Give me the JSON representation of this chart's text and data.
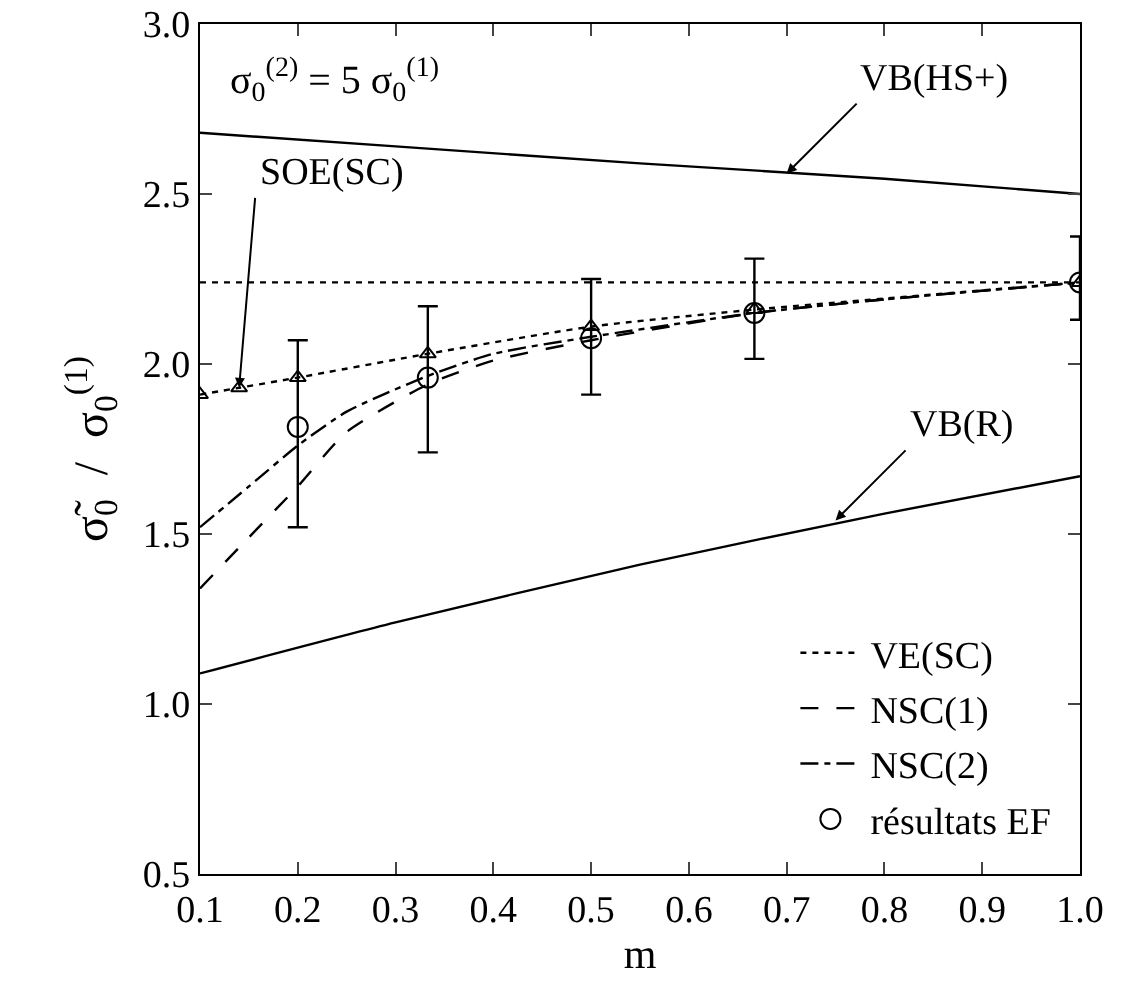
{
  "chart_data": {
    "type": "line",
    "xlabel": "m",
    "ylabel": "σ̃$_{0}$  /  σ$_{0}$$^{(1)}$",
    "xlim": [
      0.1,
      1.0
    ],
    "xticks": [
      {
        "value": 0.1,
        "label": "0.1"
      },
      {
        "value": 0.2,
        "label": "0.2"
      },
      {
        "value": 0.3,
        "label": "0.3"
      },
      {
        "value": 0.4,
        "label": "0.4"
      },
      {
        "value": 0.5,
        "label": "0.5"
      },
      {
        "value": 0.6,
        "label": "0.6"
      },
      {
        "value": 0.7,
        "label": "0.7"
      },
      {
        "value": 0.8,
        "label": "0.8"
      },
      {
        "value": 0.9,
        "label": "0.9"
      },
      {
        "value": 1.0,
        "label": "1.0"
      }
    ],
    "ylim": [
      0.5,
      3.0
    ],
    "yticks": [
      {
        "value": 0.5,
        "label": "0.5"
      },
      {
        "value": 1.0,
        "label": "1.0"
      },
      {
        "value": 1.5,
        "label": "1.5"
      },
      {
        "value": 2.0,
        "label": "2.0"
      },
      {
        "value": 2.5,
        "label": "2.5"
      },
      {
        "value": 3.0,
        "label": "3.0"
      }
    ],
    "grid": false,
    "legend": "bottom right",
    "series": [
      {
        "name": "VE(SC)",
        "color": "#000000",
        "line_style": "dotted",
        "x": [
          0.1,
          1.0
        ],
        "values": [
          2.24,
          2.24
        ]
      },
      {
        "name": "NSC(1)",
        "color": "#000000",
        "line_style": "dashed",
        "x": [
          0.1,
          0.15,
          0.2,
          0.25,
          0.333,
          0.4,
          0.5,
          0.667,
          0.8,
          1.0
        ],
        "values": [
          1.34,
          1.49,
          1.64,
          1.8,
          1.94,
          2.01,
          2.07,
          2.15,
          2.19,
          2.24
        ]
      },
      {
        "name": "NSC(2)",
        "color": "#000000",
        "line_style": "dashdot",
        "x": [
          0.1,
          0.15,
          0.2,
          0.25,
          0.333,
          0.4,
          0.5,
          0.667,
          0.8,
          1.0
        ],
        "values": [
          1.52,
          1.64,
          1.76,
          1.86,
          1.965,
          2.03,
          2.08,
          2.15,
          2.19,
          2.24
        ]
      },
      {
        "name": "résultats EF",
        "type": "scatter",
        "color": "#000000",
        "marker": "circle",
        "x": [
          0.2,
          0.333,
          0.5,
          0.667,
          1.0
        ],
        "values": [
          1.815,
          1.96,
          2.076,
          2.15,
          2.24
        ],
        "errors": [
          [
            1.52,
            2.07
          ],
          [
            1.74,
            2.17
          ],
          [
            1.91,
            2.25
          ],
          [
            2.015,
            2.31
          ],
          [
            2.13,
            2.375
          ]
        ]
      },
      {
        "color": "#000000",
        "line_style": "dotted",
        "marker": "triangle",
        "x": [
          0.1,
          0.14,
          0.2,
          0.333,
          0.5,
          0.667,
          1.0
        ],
        "values": [
          1.91,
          1.93,
          1.96,
          2.03,
          2.11,
          2.16,
          2.24
        ]
      },
      {
        "color": "#000000",
        "line_style": "solid",
        "x": [
          0.1,
          0.3,
          0.55,
          0.8,
          1.0
        ],
        "values": [
          2.68,
          2.64,
          2.59,
          2.545,
          2.5
        ]
      },
      {
        "color": "#000000",
        "line_style": "solid",
        "x": [
          0.1,
          0.3,
          0.55,
          0.8,
          1.0
        ],
        "values": [
          1.09,
          1.24,
          1.41,
          1.56,
          1.67
        ]
      }
    ],
    "annotations": [
      "σ$_{0}$$^{(2)}$ = 5 σ$_{0}$$^{(1)}$",
      {
        "text": "VB(HS+)",
        "x": 0.7,
        "y": 2.56
      },
      {
        "text": "VB(R)",
        "x": 0.75,
        "y": 1.54
      },
      {
        "text": "SOE(SC)",
        "x": 0.14,
        "y": 1.93
      }
    ]
  }
}
